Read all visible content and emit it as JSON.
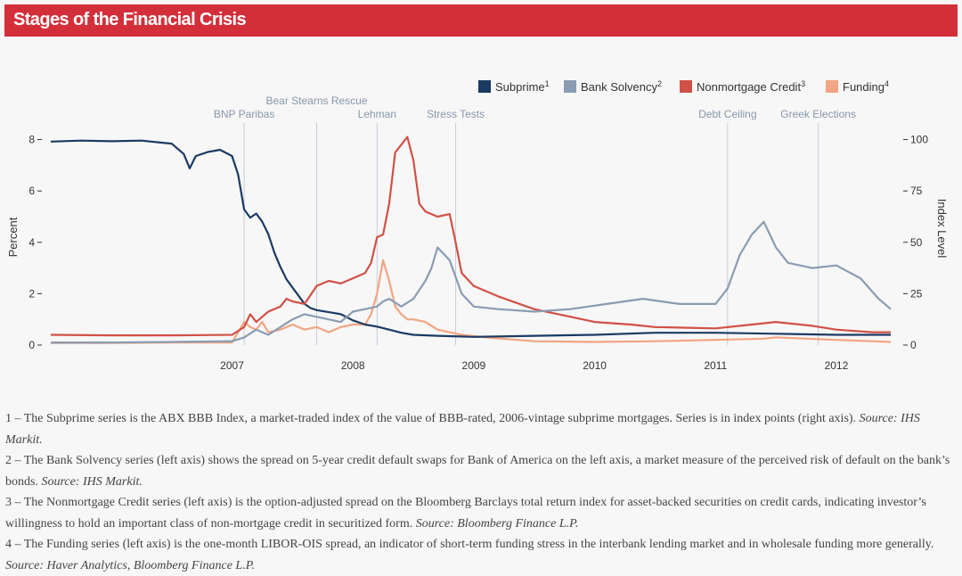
{
  "header": {
    "title": "Stages of the Financial Crisis"
  },
  "chart_data": {
    "type": "line",
    "title": "",
    "xlabel": "",
    "ylabel_left": "Percent",
    "ylabel_right": "Index Level",
    "x_ticks": [
      "2007",
      "2008",
      "2009",
      "2010",
      "2011",
      "2012"
    ],
    "y_left_ticks": [
      0,
      2,
      4,
      6,
      8
    ],
    "y_right_ticks": [
      0,
      25,
      50,
      75,
      100
    ],
    "xlim": [
      2006.0,
      2012.95
    ],
    "ylim_left": [
      0,
      8.4
    ],
    "ylim_right": [
      0,
      105
    ],
    "grid": false,
    "legend_position": "top-right",
    "events": [
      {
        "label": "BNP Paribas",
        "x": 2007.6
      },
      {
        "label": "Bear Stearns Rescue",
        "x": 2008.2
      },
      {
        "label": "Lehman",
        "x": 2008.7
      },
      {
        "label": "Stress Tests",
        "x": 2009.35
      },
      {
        "label": "Debt Ceiling",
        "x": 2011.6
      },
      {
        "label": "Greek Elections",
        "x": 2012.35
      }
    ],
    "series": [
      {
        "name": "Subprime",
        "sup": "1",
        "axis": "right",
        "color": "#1b3a63",
        "x": [
          2006.0,
          2006.25,
          2006.5,
          2006.75,
          2007.0,
          2007.1,
          2007.15,
          2007.2,
          2007.3,
          2007.4,
          2007.5,
          2007.55,
          2007.6,
          2007.65,
          2007.7,
          2007.75,
          2007.8,
          2007.85,
          2007.9,
          2007.95,
          2008.0,
          2008.05,
          2008.1,
          2008.15,
          2008.2,
          2008.3,
          2008.4,
          2008.5,
          2008.6,
          2008.7,
          2008.8,
          2008.9,
          2009.0,
          2009.2,
          2009.5,
          2010.0,
          2010.5,
          2011.0,
          2011.5,
          2012.0,
          2012.5,
          2012.95
        ],
        "y": [
          99,
          99.5,
          99.2,
          99.5,
          98,
          93,
          86,
          92,
          94,
          95,
          92,
          83,
          66,
          62,
          64,
          60,
          54,
          45,
          38,
          32,
          28,
          24,
          20,
          18,
          17,
          16,
          15,
          12,
          10,
          9,
          7.5,
          6,
          5,
          4.5,
          4,
          4.5,
          5,
          6,
          6,
          5.5,
          5,
          5
        ]
      },
      {
        "name": "Bank Solvency",
        "sup": "2",
        "axis": "left",
        "color": "#8a9cb3",
        "x": [
          2006.0,
          2006.5,
          2007.0,
          2007.5,
          2007.6,
          2007.7,
          2007.8,
          2007.9,
          2008.0,
          2008.1,
          2008.2,
          2008.3,
          2008.4,
          2008.5,
          2008.6,
          2008.7,
          2008.75,
          2008.8,
          2008.9,
          2009.0,
          2009.1,
          2009.15,
          2009.2,
          2009.3,
          2009.4,
          2009.5,
          2009.7,
          2010.0,
          2010.3,
          2010.6,
          2010.9,
          2011.2,
          2011.5,
          2011.6,
          2011.7,
          2011.8,
          2011.9,
          2012.0,
          2012.1,
          2012.3,
          2012.5,
          2012.7,
          2012.85,
          2012.95
        ],
        "y": [
          0.1,
          0.1,
          0.12,
          0.15,
          0.3,
          0.6,
          0.4,
          0.7,
          1.0,
          1.2,
          1.1,
          1.0,
          0.9,
          1.3,
          1.4,
          1.5,
          1.7,
          1.8,
          1.5,
          1.8,
          2.5,
          3.0,
          3.8,
          3.3,
          2.0,
          1.5,
          1.4,
          1.3,
          1.4,
          1.6,
          1.8,
          1.6,
          1.6,
          2.2,
          3.5,
          4.3,
          4.8,
          3.8,
          3.2,
          3.0,
          3.1,
          2.6,
          1.8,
          1.4
        ]
      },
      {
        "name": "Nonmortgage Credit",
        "sup": "3",
        "axis": "left",
        "color": "#d05146",
        "x": [
          2006.0,
          2006.5,
          2007.0,
          2007.5,
          2007.6,
          2007.65,
          2007.7,
          2007.8,
          2007.9,
          2007.95,
          2008.0,
          2008.1,
          2008.2,
          2008.3,
          2008.4,
          2008.5,
          2008.6,
          2008.65,
          2008.7,
          2008.75,
          2008.8,
          2008.85,
          2008.9,
          2008.95,
          2009.0,
          2009.05,
          2009.1,
          2009.2,
          2009.3,
          2009.35,
          2009.4,
          2009.5,
          2009.7,
          2010.0,
          2010.2,
          2010.5,
          2010.8,
          2011.0,
          2011.5,
          2011.8,
          2012.0,
          2012.3,
          2012.5,
          2012.8,
          2012.95
        ],
        "y": [
          0.4,
          0.38,
          0.38,
          0.4,
          0.7,
          1.2,
          0.9,
          1.3,
          1.5,
          1.8,
          1.7,
          1.6,
          2.3,
          2.5,
          2.4,
          2.6,
          2.8,
          3.2,
          4.2,
          4.3,
          5.5,
          7.5,
          7.8,
          8.1,
          7.2,
          5.5,
          5.2,
          5.0,
          5.1,
          4.0,
          2.8,
          2.3,
          1.9,
          1.4,
          1.2,
          0.9,
          0.8,
          0.7,
          0.65,
          0.8,
          0.9,
          0.75,
          0.6,
          0.5,
          0.5
        ]
      },
      {
        "name": "Funding",
        "sup": "4",
        "axis": "left",
        "color": "#f2a582",
        "x": [
          2006.0,
          2006.5,
          2007.0,
          2007.5,
          2007.55,
          2007.6,
          2007.65,
          2007.7,
          2007.75,
          2007.8,
          2007.9,
          2008.0,
          2008.1,
          2008.2,
          2008.3,
          2008.4,
          2008.5,
          2008.6,
          2008.65,
          2008.7,
          2008.75,
          2008.8,
          2008.85,
          2008.9,
          2008.95,
          2009.0,
          2009.1,
          2009.2,
          2009.4,
          2009.6,
          2010.0,
          2010.5,
          2011.0,
          2011.5,
          2011.9,
          2012.0,
          2012.5,
          2012.95
        ],
        "y": [
          0.08,
          0.08,
          0.1,
          0.1,
          0.5,
          0.9,
          0.7,
          0.6,
          0.9,
          0.5,
          0.6,
          0.8,
          0.6,
          0.7,
          0.5,
          0.7,
          0.8,
          0.8,
          1.2,
          2.0,
          3.3,
          2.5,
          1.5,
          1.2,
          1.0,
          1.0,
          0.9,
          0.6,
          0.4,
          0.3,
          0.15,
          0.12,
          0.15,
          0.2,
          0.25,
          0.3,
          0.2,
          0.12
        ]
      }
    ]
  },
  "notes": [
    {
      "text": "1 – The Subprime series is the ABX BBB Index, a market-traded index of the value of BBB-rated, 2006-vintage subprime mortgages. Series is in index points (right axis). ",
      "source": "Source: IHS Markit."
    },
    {
      "text": "2 – The Bank Solvency series (left axis) shows the spread on 5-year credit default swaps for Bank of America on the left axis, a market measure of the perceived risk of default on the bank’s bonds. ",
      "source": "Source: IHS Markit."
    },
    {
      "text": "3 – The Nonmortgage Credit series (left axis) is the option-adjusted spread on the Bloomberg Barclays total return index for asset-backed securities on credit cards, indicating investor’s willingness to hold an important class of non-mortgage credit in securitized form. ",
      "source": "Source: Bloomberg Finance L.P."
    },
    {
      "text": "4 – The Funding series (left axis) is the one-month LIBOR-OIS spread, an indicator of short-term funding stress in the interbank lending market and in wholesale funding more generally. ",
      "source": "Source: Haver Analytics, Bloomberg Finance L.P."
    }
  ]
}
